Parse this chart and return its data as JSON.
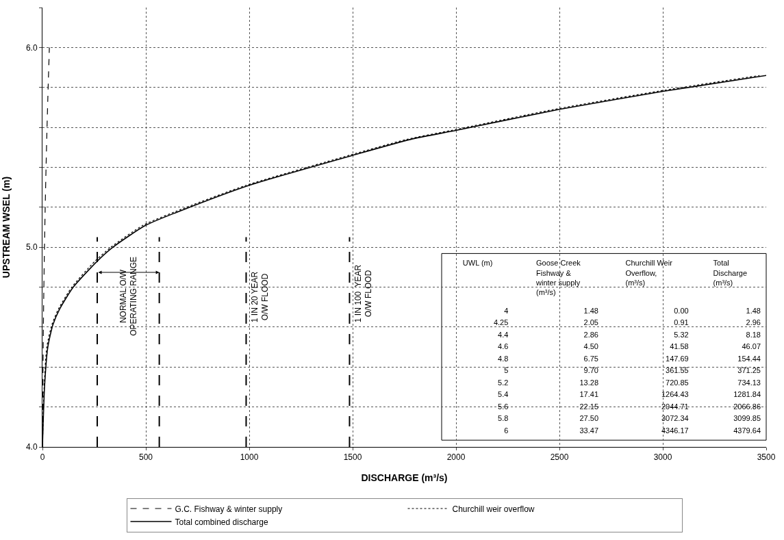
{
  "chart_data": [
    {
      "type": "line",
      "xlabel": "DISCHARGE (m³/s)",
      "ylabel": "UPSTREAM WSEL (m)",
      "series": [
        {
          "name": "G.C. Fishway & winter supply",
          "color": "#000000",
          "line_style": "dashed",
          "x": [
            1.48,
            2.05,
            2.86,
            4.5,
            6.75,
            9.7,
            13.28,
            17.41,
            22.15,
            27.5,
            33.47
          ],
          "values": [
            4.0,
            4.25,
            4.4,
            4.6,
            4.8,
            5.0,
            5.2,
            5.4,
            5.6,
            5.8,
            6.0
          ]
        },
        {
          "name": "Churchill weir overflow",
          "color": "#000000",
          "line_style": "dotted",
          "x": [
            0,
            8,
            21,
            45,
            77,
            142,
            254,
            331,
            487,
            697,
            985,
            1483,
            1762,
            1978,
            2475,
            2972,
            3468
          ],
          "values": [
            4.0,
            4.3,
            4.5,
            4.61,
            4.69,
            4.8,
            4.93,
            5.0,
            5.11,
            5.2,
            5.31,
            5.46,
            5.54,
            5.585,
            5.69,
            5.78,
            5.86
          ]
        },
        {
          "name": "Total combined discharge",
          "color": "#000000",
          "line_style": "solid",
          "x": [
            0,
            10,
            26,
            50,
            83,
            149,
            265,
            341,
            500,
            712,
            1000,
            1500,
            1781,
            2000,
            2500,
            3000,
            3500
          ],
          "values": [
            4.0,
            4.3,
            4.5,
            4.61,
            4.69,
            4.8,
            4.93,
            5.0,
            5.11,
            5.2,
            5.31,
            5.46,
            5.54,
            5.585,
            5.69,
            5.78,
            5.86
          ]
        }
      ],
      "xlim": [
        0,
        3500
      ],
      "ylim": [
        4.0,
        6.2
      ],
      "xticks": [
        0,
        500,
        1000,
        1500,
        2000,
        2500,
        3000,
        3500
      ],
      "yticks": [
        {
          "value": 4.0,
          "label": "4.0"
        },
        {
          "value": 4.2,
          "label": null
        },
        {
          "value": 4.4,
          "label": null
        },
        {
          "value": 4.6,
          "label": null
        },
        {
          "value": 4.8,
          "label": null
        },
        {
          "value": 5.0,
          "label": "5.0"
        },
        {
          "value": 5.2,
          "label": null
        },
        {
          "value": 5.4,
          "label": null
        },
        {
          "value": 5.6,
          "label": null
        },
        {
          "value": 5.8,
          "label": null
        },
        {
          "value": 6.0,
          "label": "6.0"
        },
        {
          "value": 6.2,
          "label": null
        }
      ],
      "grid": true,
      "legend": "bottom",
      "ref_lines": [
        {
          "axis": "x",
          "value": 265,
          "label": null,
          "line_style": "dashed"
        },
        {
          "axis": "x",
          "value": 565,
          "label": null,
          "line_style": "dashed"
        },
        {
          "axis": "x",
          "value": 985,
          "label": "1 IN 20 YEAR\nO/W FLOOD",
          "line_style": "dashed"
        },
        {
          "axis": "x",
          "value": 1485,
          "label": "1 IN 100  YEAR\nO/W FLOOD",
          "line_style": "dashed"
        }
      ],
      "annotations": [
        "NORMAL O/W\nOPERATING RANGE"
      ]
    },
    {
      "type": "heatmap",
      "ylabel": "UWL (m)",
      "categories": [
        "Goose Creek\nFishway &\nwinter supply\n(m³/s)",
        "Churchill Weir\nOverflow,\n(m³/s)",
        "Total\nDischarge\n(m³/s)"
      ],
      "y_categories": [
        "4",
        "4.25",
        "4.4",
        "4.6",
        "4.8",
        "5",
        "5.2",
        "5.4",
        "5.6",
        "5.8",
        "6"
      ],
      "cells": [
        [
          1.48,
          0.0,
          1.48
        ],
        [
          2.05,
          0.91,
          2.96
        ],
        [
          2.86,
          5.32,
          8.18
        ],
        [
          4.5,
          41.58,
          46.07
        ],
        [
          6.75,
          147.69,
          154.44
        ],
        [
          9.7,
          361.55,
          371.25
        ],
        [
          13.28,
          720.85,
          734.13
        ],
        [
          17.41,
          1264.43,
          1281.84
        ],
        [
          22.15,
          2044.71,
          2066.86
        ],
        [
          27.5,
          3072.34,
          3099.85
        ],
        [
          33.47,
          4346.17,
          4379.64
        ]
      ],
      "cell_labels": [
        [
          "1.48",
          "0.00",
          "1.48"
        ],
        [
          "2.05",
          "0.91",
          "2.96"
        ],
        [
          "2.86",
          "5.32",
          "8.18"
        ],
        [
          "4.50",
          "41.58",
          "46.07"
        ],
        [
          "6.75",
          "147.69",
          "154.44"
        ],
        [
          "9.70",
          "361.55",
          "371.25"
        ],
        [
          "13.28",
          "720.85",
          "734.13"
        ],
        [
          "17.41",
          "1264.43",
          "1281.84"
        ],
        [
          "22.15",
          "2044.71",
          "2066.86"
        ],
        [
          "27.50",
          "3072.34",
          "3099.85"
        ],
        [
          "33.47",
          "4346.17",
          "4379.64"
        ]
      ]
    }
  ]
}
